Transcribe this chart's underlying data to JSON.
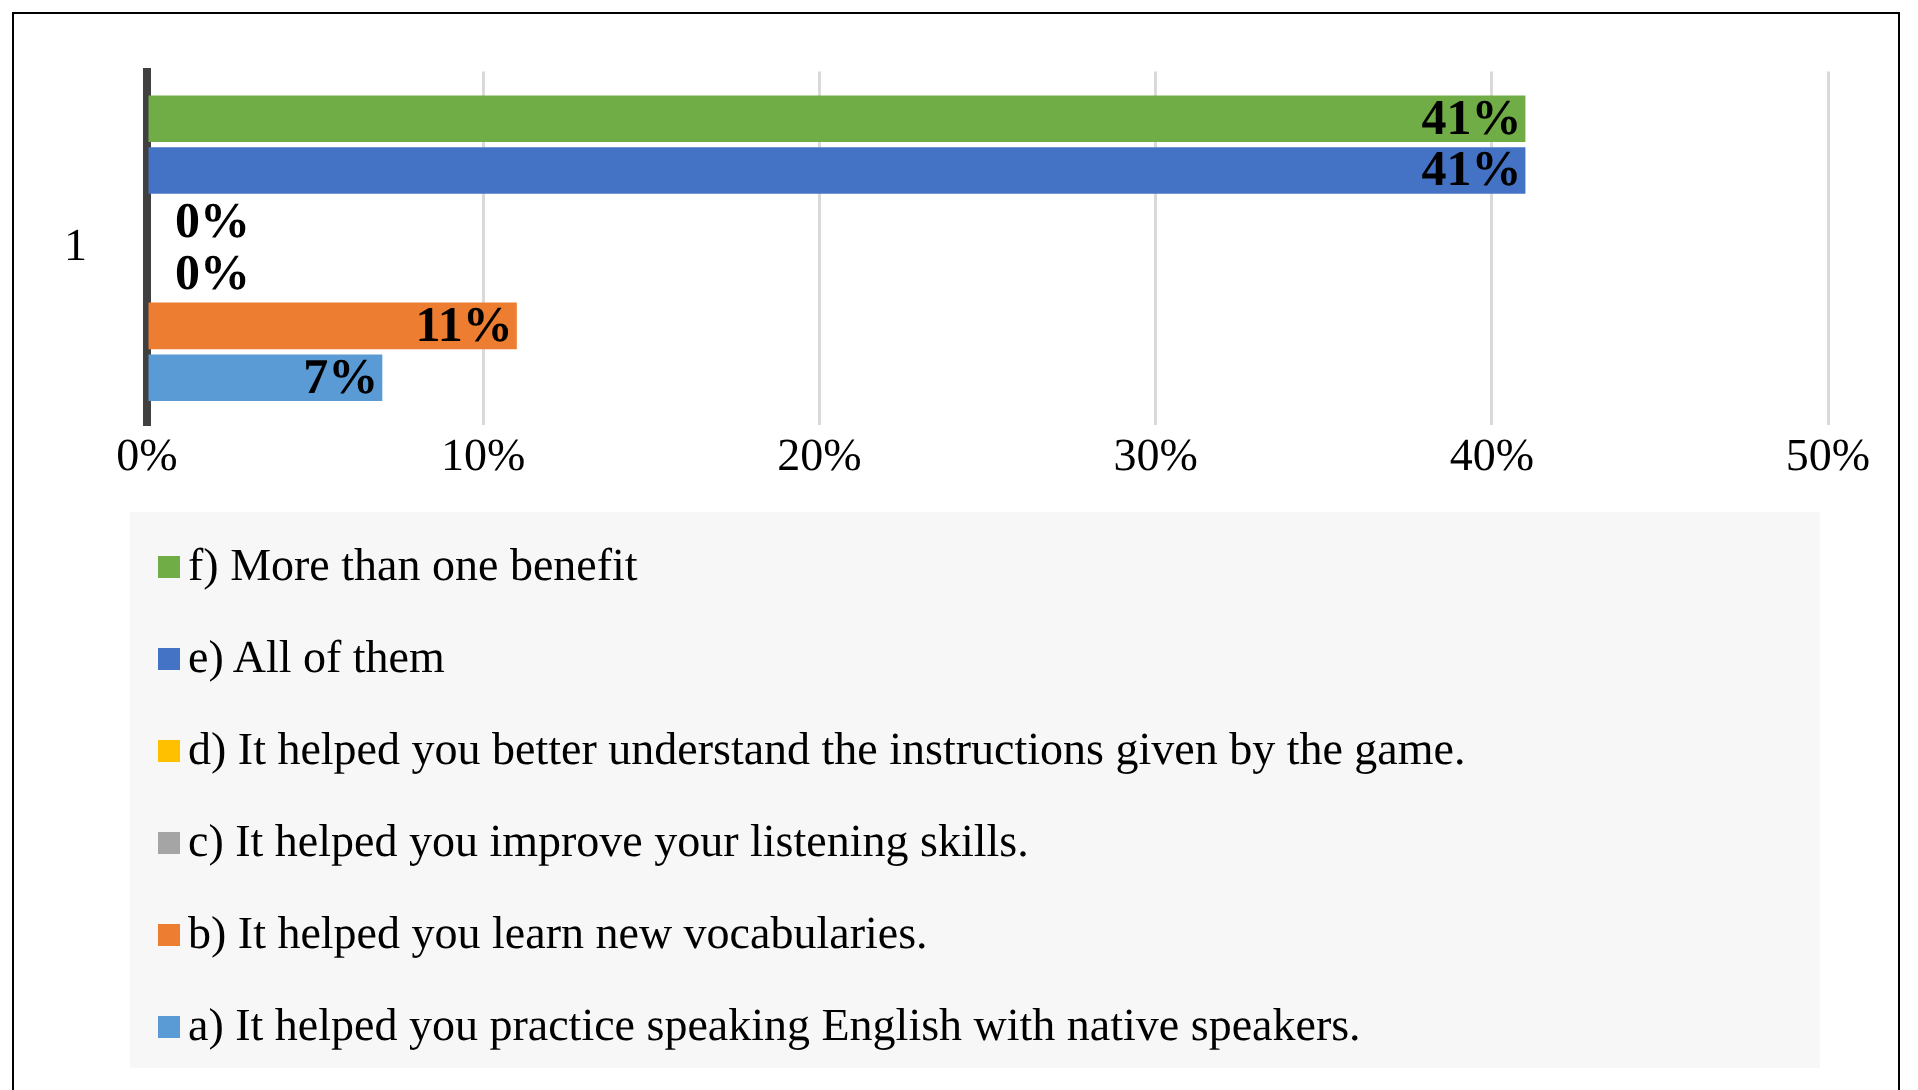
{
  "chart_data": {
    "type": "bar",
    "orientation": "horizontal",
    "categories": [
      "1"
    ],
    "series": [
      {
        "name": "f) More than one benefit",
        "color": "#70ad47",
        "values": [
          41
        ],
        "value_labels": [
          "41%"
        ]
      },
      {
        "name": "e) All of them",
        "color": "#4472c4",
        "values": [
          41
        ],
        "value_labels": [
          "41%"
        ]
      },
      {
        "name": "d) It helped you better understand the instructions given by the game.",
        "color": "#ffc000",
        "values": [
          0
        ],
        "value_labels": [
          "0%"
        ]
      },
      {
        "name": "c) It helped you improve your listening skills.",
        "color": "#a5a5a5",
        "values": [
          0
        ],
        "value_labels": [
          "0%"
        ]
      },
      {
        "name": "b) It helped you learn new vocabularies.",
        "color": "#ed7d31",
        "values": [
          11
        ],
        "value_labels": [
          "11%"
        ]
      },
      {
        "name": "a) It helped you practice speaking English with native speakers.",
        "color": "#5b9bd5",
        "values": [
          7
        ],
        "value_labels": [
          "7%"
        ]
      }
    ],
    "xlim": [
      0,
      50
    ],
    "xticks": [
      {
        "value": 0,
        "label": "0%"
      },
      {
        "value": 10,
        "label": "10%"
      },
      {
        "value": 20,
        "label": "20%"
      },
      {
        "value": 30,
        "label": "30%"
      },
      {
        "value": 40,
        "label": "40%"
      },
      {
        "value": 50,
        "label": "50%"
      }
    ],
    "grid": "x",
    "legend": "bottom"
  }
}
